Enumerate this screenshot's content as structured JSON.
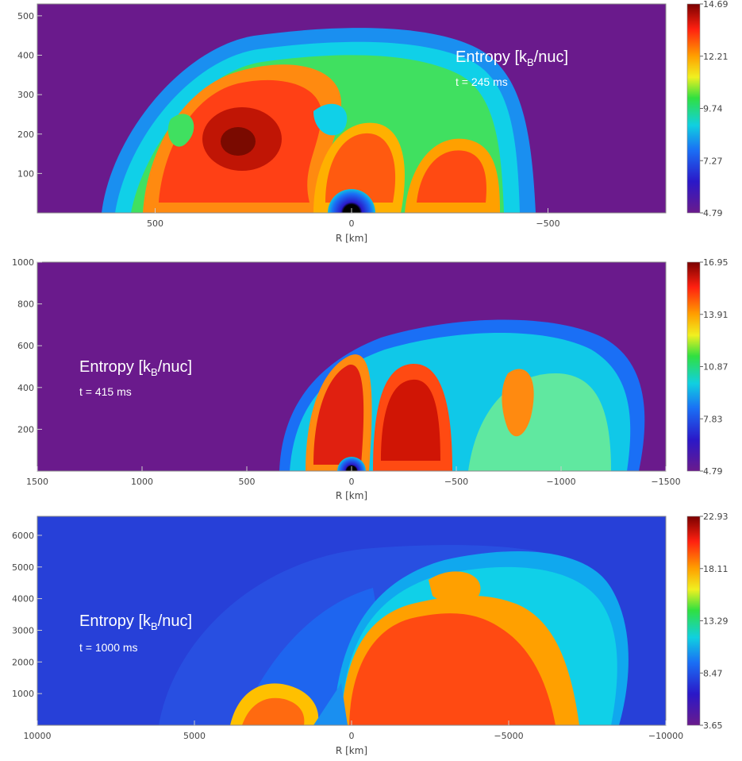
{
  "chart_data": [
    {
      "type": "heatmap",
      "title_main": "Entropy [k",
      "title_sub": "B",
      "title_end": "/nuc]",
      "time_label": "t = 245 ms",
      "xlabel": "R [km]",
      "ylabel": "",
      "xlim": [
        800,
        -800
      ],
      "ylim": [
        0,
        530
      ],
      "xticks": [
        500,
        0,
        -500
      ],
      "xtick_labels": [
        "500",
        "0",
        "−500"
      ],
      "yticks": [
        100,
        200,
        300,
        400,
        500
      ],
      "ytick_labels": [
        "100",
        "200",
        "300",
        "400",
        "500"
      ],
      "colorbar_ticks": [
        "14.69",
        "12.21",
        "9.74",
        "7.27",
        "4.79"
      ],
      "colorbar_range": [
        4.79,
        14.69
      ],
      "background_value": 4.79
    },
    {
      "type": "heatmap",
      "title_main": "Entropy [k",
      "title_sub": "B",
      "title_end": "/nuc]",
      "time_label": "t = 415 ms",
      "xlabel": "R [km]",
      "ylabel": "",
      "xlim": [
        1500,
        -1500
      ],
      "ylim": [
        0,
        1000
      ],
      "xticks": [
        1500,
        1000,
        500,
        0,
        -500,
        -1000,
        -1500
      ],
      "xtick_labels": [
        "1500",
        "1000",
        "500",
        "0",
        "−500",
        "−1000",
        "−1500"
      ],
      "yticks": [
        200,
        400,
        600,
        800,
        1000
      ],
      "ytick_labels": [
        "200",
        "400",
        "600",
        "800",
        "1000"
      ],
      "colorbar_ticks": [
        "16.95",
        "13.91",
        "10.87",
        "7.83",
        "4.79"
      ],
      "colorbar_range": [
        4.79,
        16.95
      ],
      "background_value": 4.79
    },
    {
      "type": "heatmap",
      "title_main": "Entropy [k",
      "title_sub": "B",
      "title_end": "/nuc]",
      "time_label": "t = 1000 ms",
      "xlabel": "R [km]",
      "ylabel": "",
      "xlim": [
        10000,
        -10000
      ],
      "ylim": [
        0,
        6600
      ],
      "xticks": [
        10000,
        5000,
        0,
        -5000,
        -10000
      ],
      "xtick_labels": [
        "10000",
        "5000",
        "0",
        "−5000",
        "−10000"
      ],
      "yticks": [
        1000,
        2000,
        3000,
        4000,
        5000,
        6000
      ],
      "ytick_labels": [
        "1000",
        "2000",
        "3000",
        "4000",
        "5000",
        "6000"
      ],
      "colorbar_ticks": [
        "22.93",
        "18.11",
        "13.29",
        "8.47",
        "3.65"
      ],
      "colorbar_range": [
        3.65,
        22.93
      ],
      "background_value": 7.0
    }
  ]
}
